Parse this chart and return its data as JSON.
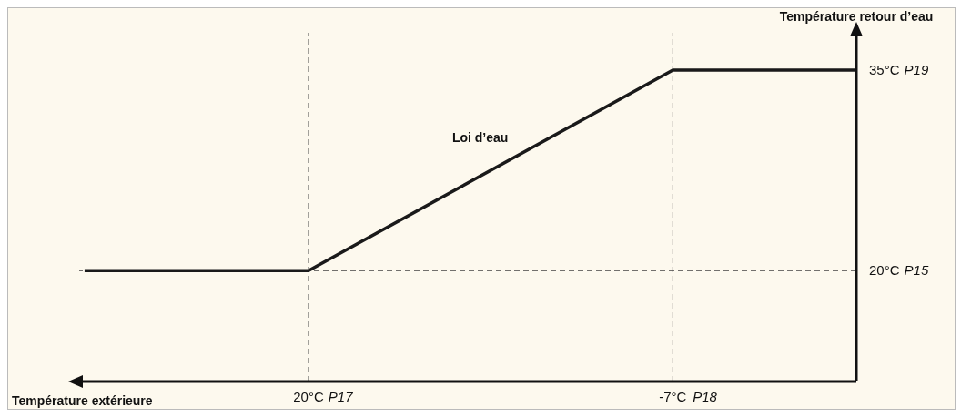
{
  "chart_data": {
    "type": "line",
    "xlabel": "Température extérieure",
    "ylabel": "Température retour d’eau",
    "x": [
      36.6,
      20,
      -7,
      -20.6
    ],
    "series": [
      {
        "color": "#1a1a1a",
        "values": [
          20,
          20,
          35,
          35
        ]
      }
    ],
    "xlim": [
      37,
      -20.6
    ],
    "xticks": [
      {
        "value": 20,
        "label": "20°C"
      },
      {
        "value": -7,
        "label": "-7°C"
      }
    ],
    "ylim": [
      11.7,
      37.8
    ],
    "yticks": [
      {
        "value": 20,
        "label": "20°C"
      },
      {
        "value": 35,
        "label": "35°C"
      }
    ],
    "ref_lines": [
      {
        "axis": "x",
        "value": 20,
        "color": "#333333",
        "line_style": "dashed"
      },
      {
        "axis": "x",
        "value": -7,
        "color": "#333333",
        "line_style": "dashed"
      },
      {
        "axis": "y",
        "value": 20,
        "color": "#333333",
        "line_style": "dashed"
      }
    ],
    "annotations": [
      "Loi d’eau",
      "P17",
      "P18",
      "P15",
      "P19"
    ],
    "marker": "none",
    "line_style": "solid"
  }
}
